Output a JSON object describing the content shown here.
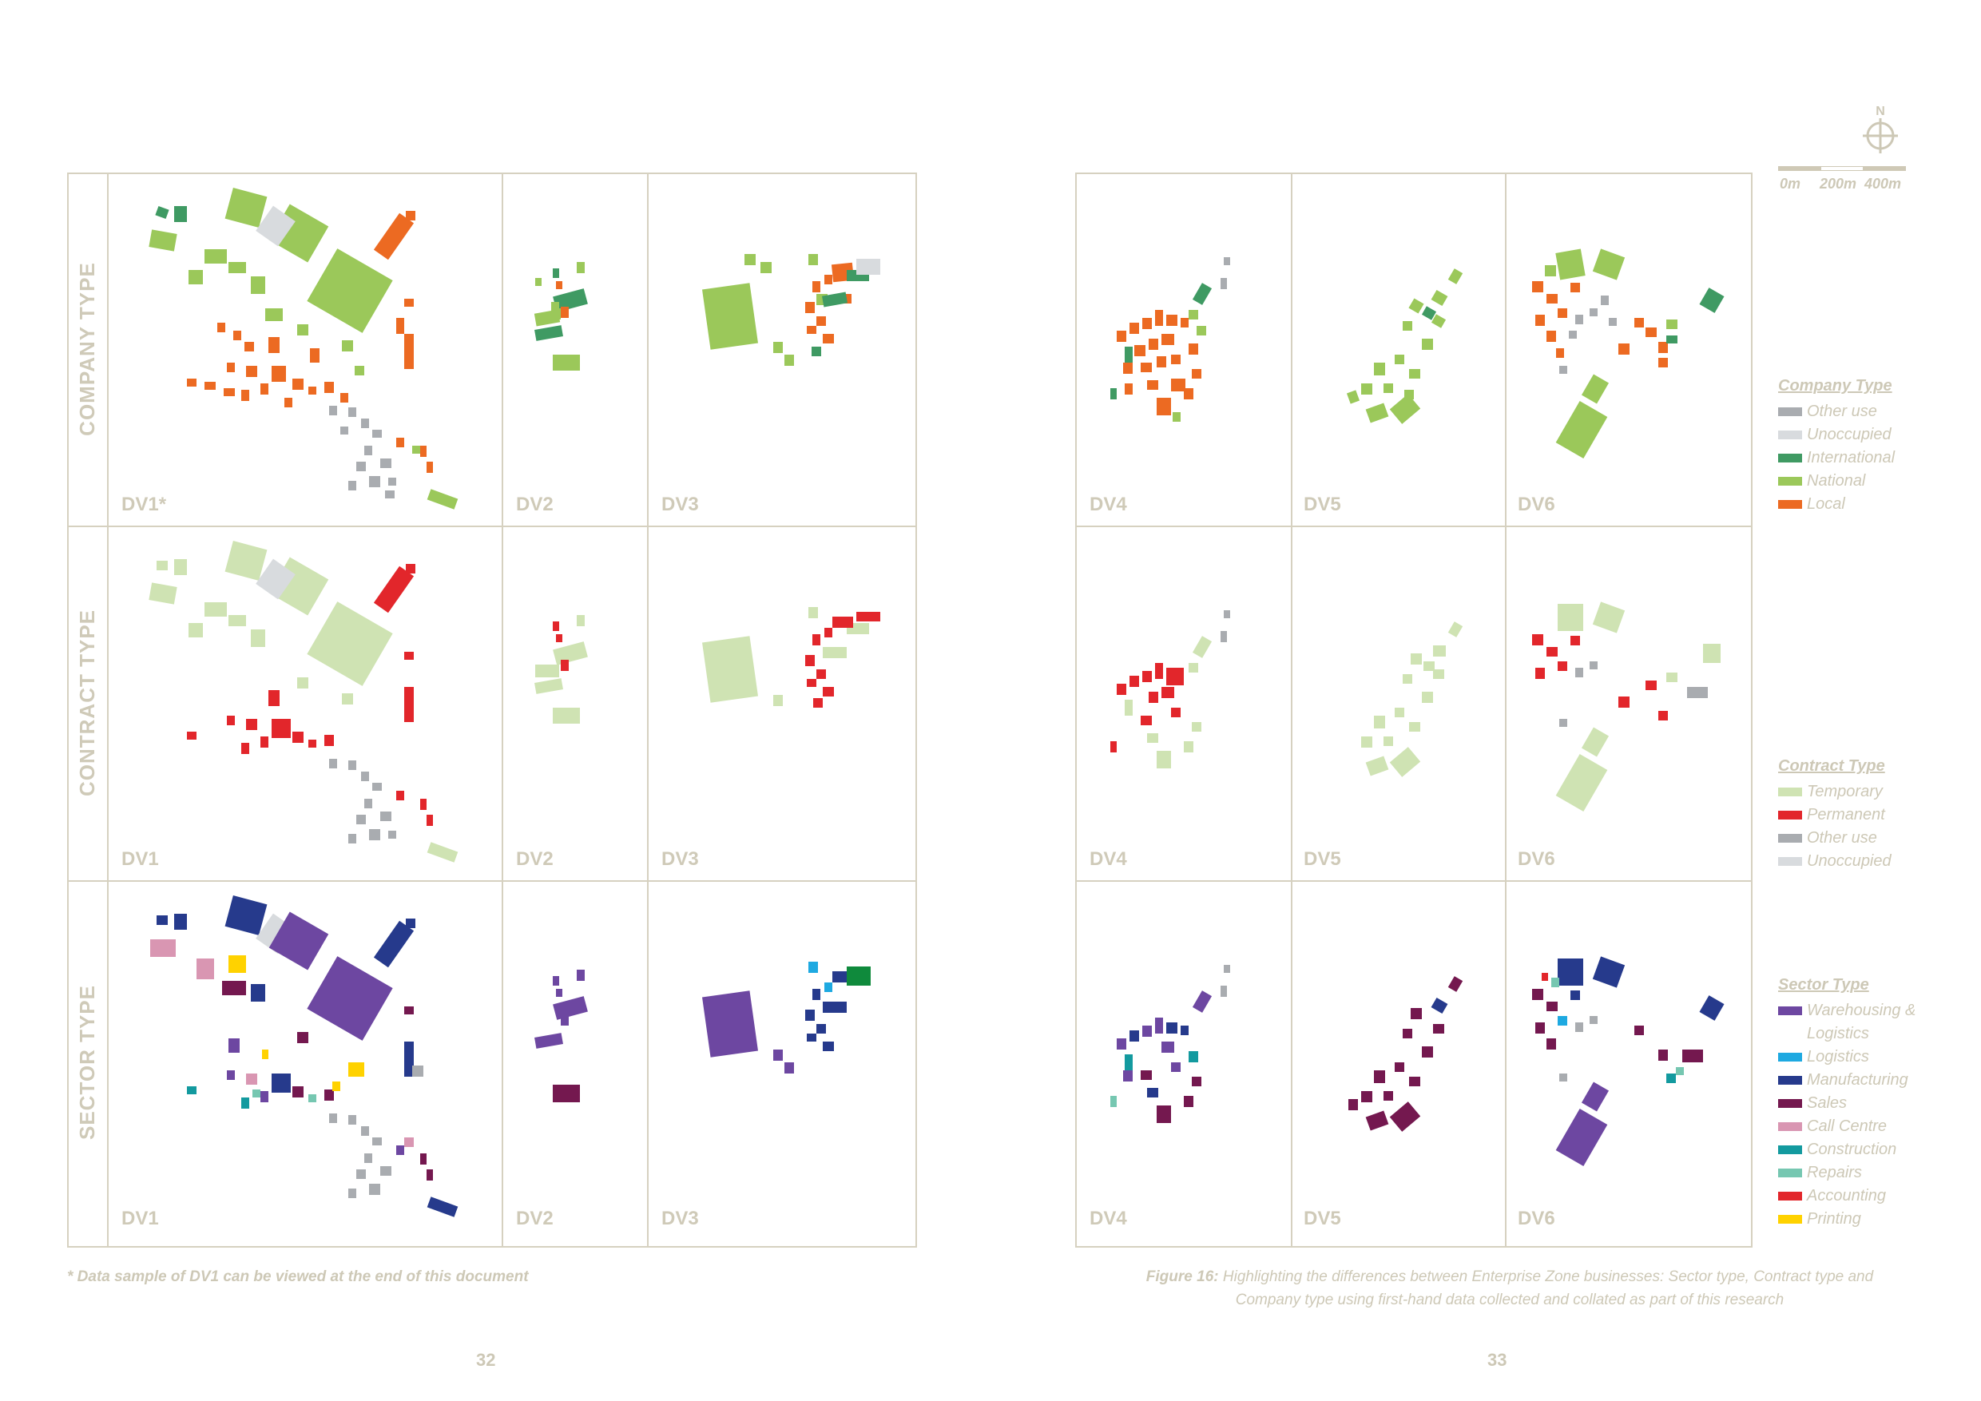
{
  "rows": [
    {
      "label": "COMPANY TYPE"
    },
    {
      "label": "CONTRACT TYPE"
    },
    {
      "label": "SECTOR TYPE"
    }
  ],
  "panels": {
    "row0": [
      "DV1*",
      "DV2",
      "DV3",
      "DV4",
      "DV5",
      "DV6"
    ],
    "row1": [
      "DV1",
      "DV2",
      "DV3",
      "DV4",
      "DV5",
      "DV6"
    ],
    "row2": [
      "DV1",
      "DV2",
      "DV3",
      "DV4",
      "DV5",
      "DV6"
    ]
  },
  "legends": {
    "company": {
      "title": "Company Type",
      "items": [
        {
          "label": "Other use",
          "color": "#a9acb0"
        },
        {
          "label": "Unoccupied",
          "color": "#d8dbde"
        },
        {
          "label": "International",
          "color": "#3f9a63"
        },
        {
          "label": "National",
          "color": "#9bc85a"
        },
        {
          "label": "Local",
          "color": "#ec6a22"
        }
      ]
    },
    "contract": {
      "title": "Contract Type",
      "items": [
        {
          "label": "Temporary",
          "color": "#cfe3b3"
        },
        {
          "label": "Permanent",
          "color": "#e2262b"
        },
        {
          "label": "Other use",
          "color": "#a9acb0"
        },
        {
          "label": "Unoccupied",
          "color": "#d8dbde"
        }
      ]
    },
    "sector": {
      "title": "Sector Type",
      "items": [
        {
          "label": "Warehousing &",
          "color": "#6d47a1"
        },
        {
          "label": "Logistics",
          "color": ""
        },
        {
          "label": "Logistics",
          "color": "#1ea9e1"
        },
        {
          "label": "Manufacturing",
          "color": "#263a8c"
        },
        {
          "label": "Sales",
          "color": "#74184f"
        },
        {
          "label": "Call Centre",
          "color": "#d996b2"
        },
        {
          "label": "Construction",
          "color": "#139a9f"
        },
        {
          "label": "Repairs",
          "color": "#76c7b1"
        },
        {
          "label": "Accounting",
          "color": "#e2262b"
        },
        {
          "label": "Printing",
          "color": "#ffd200"
        }
      ]
    }
  },
  "scale": {
    "north": "N",
    "labels": [
      "0m",
      "200m",
      "400m"
    ]
  },
  "footnote": "* Data sample of DV1 can be viewed at the end of this document",
  "caption": {
    "lead": "Figure 16:",
    "line1": " Highlighting the differences between Enterprise Zone businesses: Sector type, Contract type and",
    "line2": "Company type using first-hand data collected and collated as part of this research"
  },
  "pages": {
    "left": "32",
    "right": "33"
  }
}
